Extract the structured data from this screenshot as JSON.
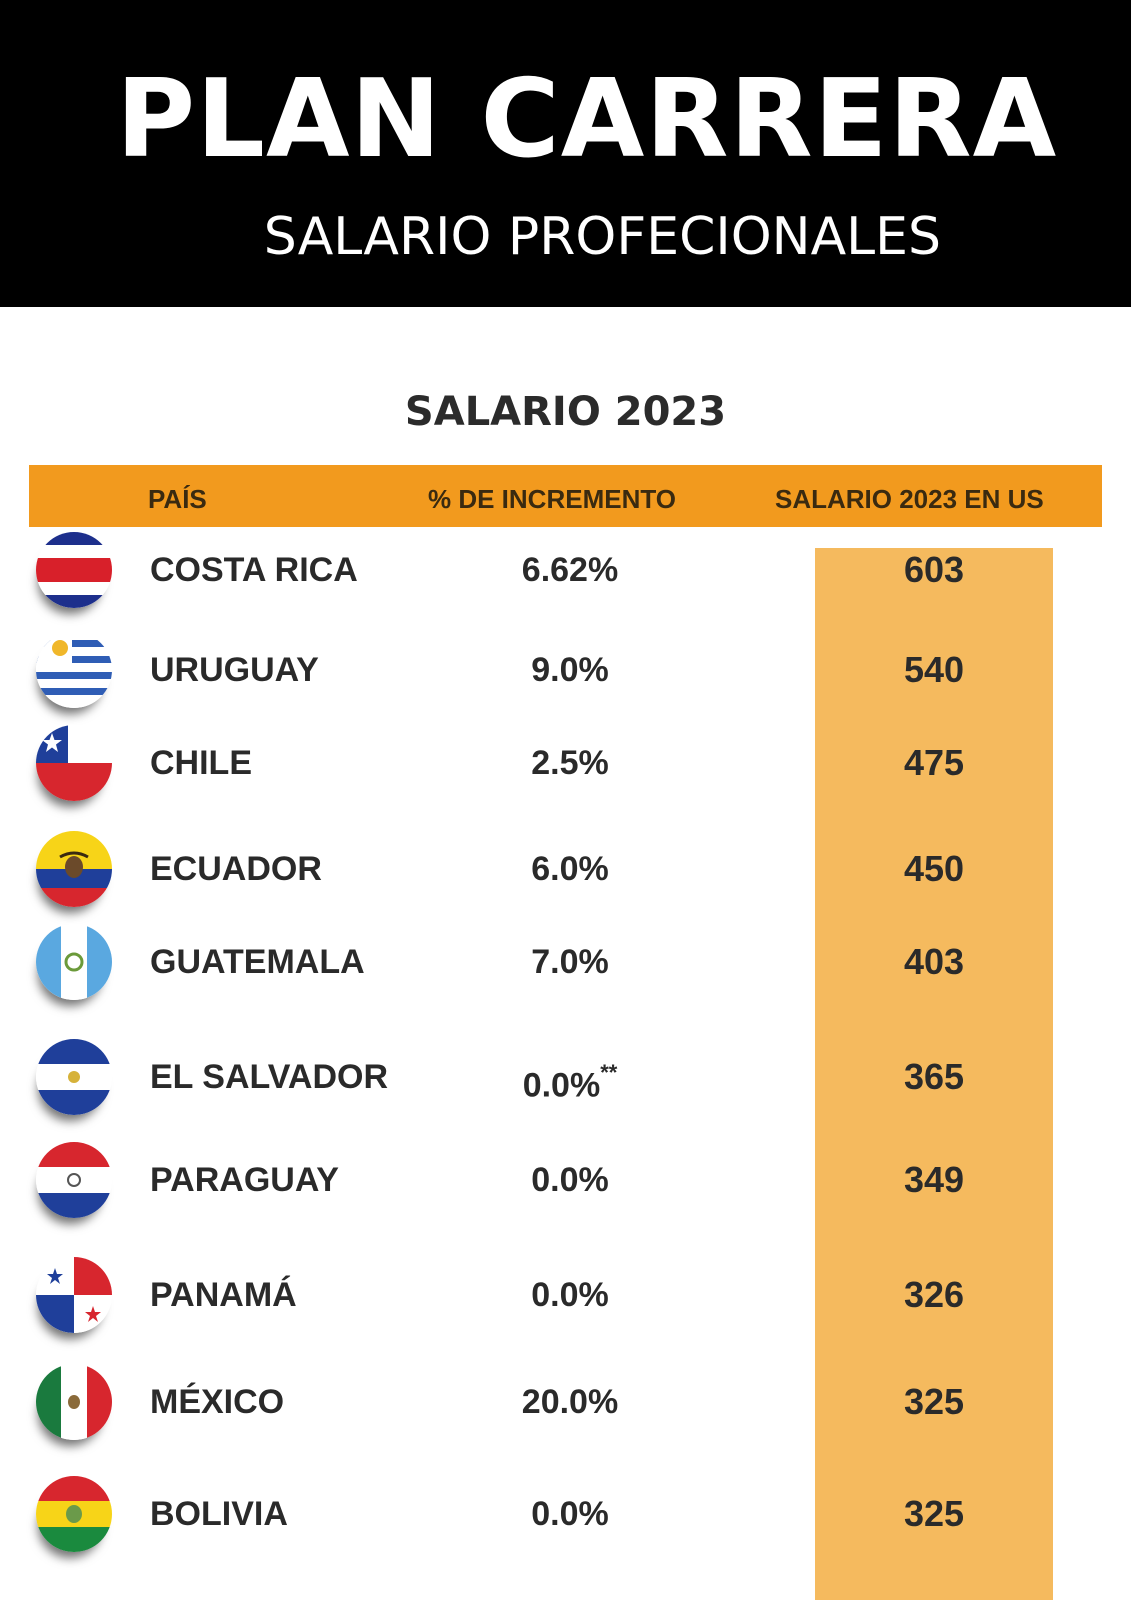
{
  "banner": {
    "title": "PLAN CARRERA",
    "subtitle": "SALARIO PROFECIONALES"
  },
  "chart_data": {
    "type": "table",
    "title": "SALARIO 2023",
    "columns": [
      "PAÍS",
      "% DE INCREMENTO",
      "SALARIO 2023 EN US"
    ],
    "rows": [
      {
        "country": "COSTA RICA",
        "increment": "6.62%",
        "note": "",
        "salary": "603",
        "flag": "costa-rica-flag-icon"
      },
      {
        "country": "URUGUAY",
        "increment": "9.0%",
        "note": "",
        "salary": "540",
        "flag": "uruguay-flag-icon"
      },
      {
        "country": "CHILE",
        "increment": "2.5%",
        "note": "",
        "salary": "475",
        "flag": "chile-flag-icon"
      },
      {
        "country": "ECUADOR",
        "increment": "6.0%",
        "note": "",
        "salary": "450",
        "flag": "ecuador-flag-icon"
      },
      {
        "country": "GUATEMALA",
        "increment": "7.0%",
        "note": "",
        "salary": "403",
        "flag": "guatemala-flag-icon"
      },
      {
        "country": "EL SALVADOR",
        "increment": "0.0%",
        "note": "**",
        "salary": "365",
        "flag": "el-salvador-flag-icon"
      },
      {
        "country": "PARAGUAY",
        "increment": "0.0%",
        "note": "",
        "salary": "349",
        "flag": "paraguay-flag-icon"
      },
      {
        "country": "PANAMÁ",
        "increment": "0.0%",
        "note": "",
        "salary": "326",
        "flag": "panama-flag-icon"
      },
      {
        "country": "MÉXICO",
        "increment": "20.0%",
        "note": "",
        "salary": "325",
        "flag": "mexico-flag-icon"
      },
      {
        "country": "BOLIVIA",
        "increment": "0.0%",
        "note": "",
        "salary": "325",
        "flag": "bolivia-flag-icon"
      }
    ]
  },
  "colors": {
    "banner_bg": "#000000",
    "header_bar": "#f29a1e",
    "salary_column": "#f5ba5e",
    "text": "#2a2a2a"
  }
}
